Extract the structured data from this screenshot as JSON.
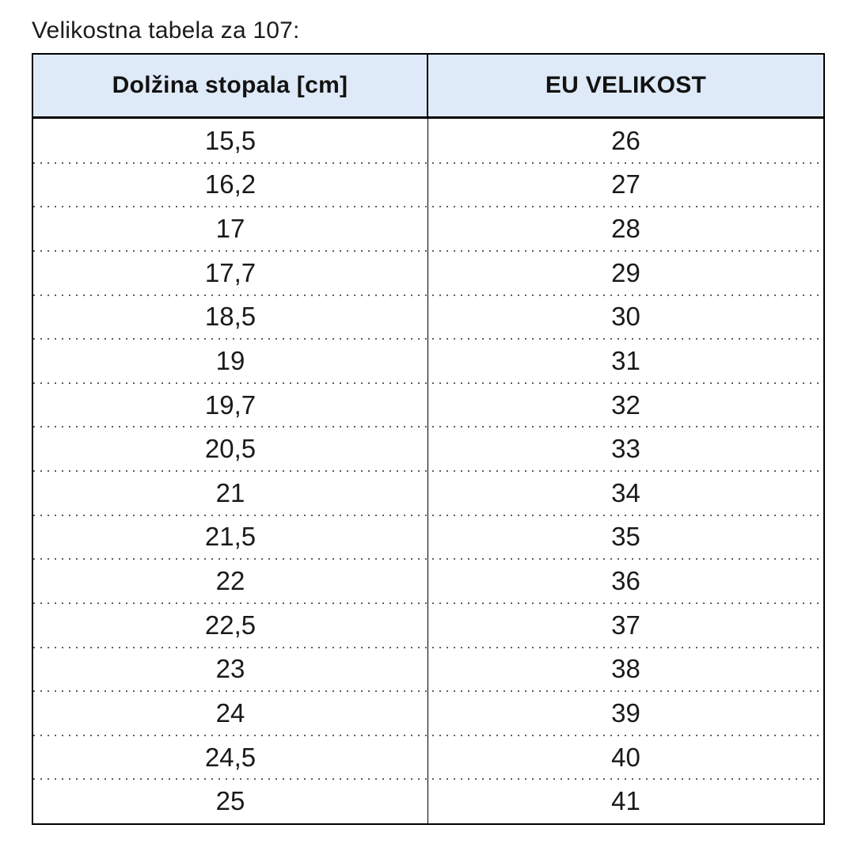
{
  "page": {
    "title": "Velikostna tabela za 107:"
  },
  "table": {
    "columns": [
      {
        "label": "Dolžina stopala [cm]"
      },
      {
        "label": "EU VELIKOST"
      }
    ],
    "rows": [
      {
        "cm": "15,5",
        "eu": "26"
      },
      {
        "cm": "16,2",
        "eu": "27"
      },
      {
        "cm": "17",
        "eu": "28"
      },
      {
        "cm": "17,7",
        "eu": "29"
      },
      {
        "cm": "18,5",
        "eu": "30"
      },
      {
        "cm": "19",
        "eu": "31"
      },
      {
        "cm": "19,7",
        "eu": "32"
      },
      {
        "cm": "20,5",
        "eu": "33"
      },
      {
        "cm": "21",
        "eu": "34"
      },
      {
        "cm": "21,5",
        "eu": "35"
      },
      {
        "cm": "22",
        "eu": "36"
      },
      {
        "cm": "22,5",
        "eu": "37"
      },
      {
        "cm": "23",
        "eu": "38"
      },
      {
        "cm": "24",
        "eu": "39"
      },
      {
        "cm": "24,5",
        "eu": "40"
      },
      {
        "cm": "25",
        "eu": "41"
      }
    ]
  },
  "colors": {
    "header_background": "#dfeaf8",
    "solid_border": "#000000",
    "dotted_divider": "#5f5f5f",
    "text": "#1a1a1a"
  },
  "chart_data": {
    "type": "table",
    "title": "Velikostna tabela za 107:",
    "columns": [
      "Dolžina stopala [cm]",
      "EU VELIKOST"
    ],
    "rows": [
      [
        "15,5",
        "26"
      ],
      [
        "16,2",
        "27"
      ],
      [
        "17",
        "28"
      ],
      [
        "17,7",
        "29"
      ],
      [
        "18,5",
        "30"
      ],
      [
        "19",
        "31"
      ],
      [
        "19,7",
        "32"
      ],
      [
        "20,5",
        "33"
      ],
      [
        "21",
        "34"
      ],
      [
        "21,5",
        "35"
      ],
      [
        "22",
        "36"
      ],
      [
        "22,5",
        "37"
      ],
      [
        "23",
        "38"
      ],
      [
        "24",
        "39"
      ],
      [
        "24,5",
        "40"
      ],
      [
        "25",
        "41"
      ]
    ]
  }
}
